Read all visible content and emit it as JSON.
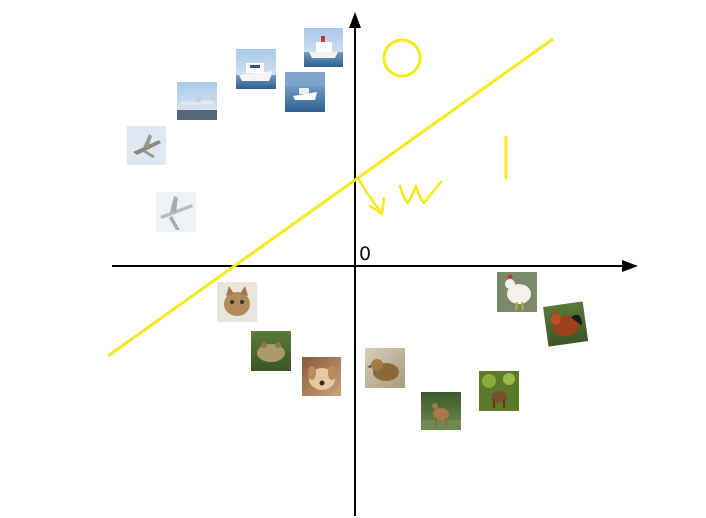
{
  "diagram": {
    "origin_label": "0",
    "weight_label": "w",
    "axis_color": "#000000",
    "boundary_color": "#f2ea1a",
    "class_a_marker": "circle",
    "class_b_marker": "vertical-bar",
    "region_upper_left": [
      "ship",
      "ship",
      "ship",
      "airplane",
      "airplane",
      "airplane"
    ],
    "region_lower_right": [
      "cat",
      "frog",
      "dog",
      "bird",
      "rooster",
      "rooster",
      "deer",
      "deer"
    ],
    "image_thumbnail_icons": [
      "ship-photo-icon",
      "ship-photo-icon",
      "ship-photo-icon",
      "airplane-photo-icon",
      "airplane-photo-icon",
      "airplane-photo-icon",
      "cat-photo-icon",
      "frog-photo-icon",
      "dog-photo-icon",
      "bird-photo-icon",
      "rooster-photo-icon",
      "rooster-photo-icon",
      "deer-photo-icon",
      "deer-photo-icon"
    ]
  }
}
